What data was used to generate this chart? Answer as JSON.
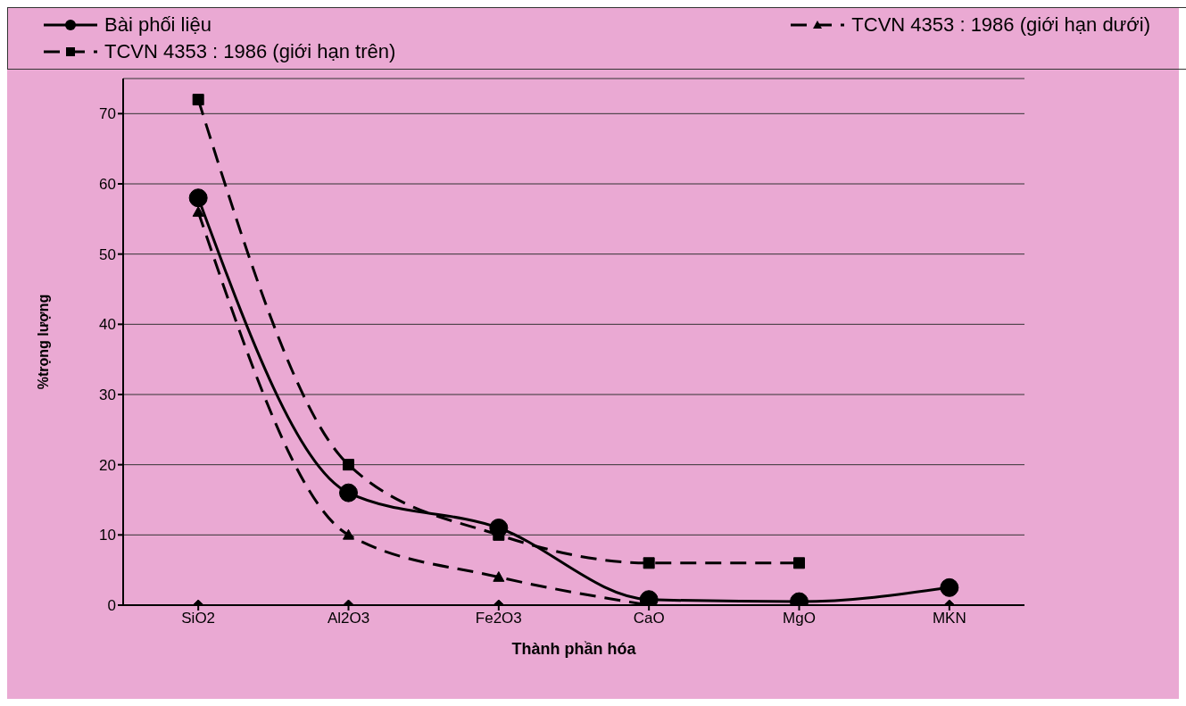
{
  "chart_data": {
    "type": "line",
    "xlabel": "Thành phần hóa",
    "ylabel": "%trọng lượng",
    "categories": [
      "SiO2",
      "Al2O3",
      "Fe2O3",
      "CaO",
      "MgO",
      "MKN"
    ],
    "series": [
      {
        "name": "Bài phối liệu",
        "color": "#000000",
        "marker": "circle",
        "line_style": "solid",
        "values": [
          58,
          16,
          11,
          0.8,
          0.5,
          2.5
        ]
      },
      {
        "name": "TCVN 4353 : 1986 (giới hạn dưới)",
        "color": "#000000",
        "marker": "triangle",
        "line_style": "dashed",
        "values": [
          56,
          10,
          4,
          0,
          null,
          null
        ]
      },
      {
        "name": "TCVN 4353 : 1986 (giới hạn trên)",
        "color": "#000000",
        "marker": "square",
        "line_style": "dashed",
        "values": [
          72,
          20,
          10,
          6,
          6,
          null
        ]
      },
      {
        "type": "scatter",
        "color": "#000000",
        "marker": "diamond",
        "values": [
          0,
          0,
          0,
          null,
          null,
          0
        ]
      }
    ],
    "ylim": [
      0,
      75
    ],
    "yticks": [
      0,
      10,
      20,
      30,
      40,
      50,
      60,
      70
    ],
    "grid": "y",
    "legend": "top"
  }
}
